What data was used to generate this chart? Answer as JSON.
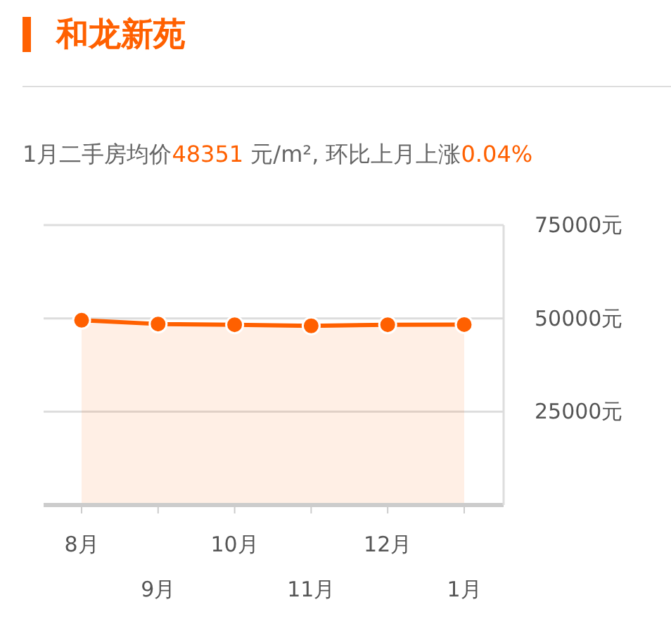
{
  "chart_data": {
    "type": "area",
    "title": "和龙新苑",
    "subtitle": "1月二手房均价48351 元/m², 环比上月上涨0.04%",
    "categories": [
      "8月",
      "9月",
      "10月",
      "11月",
      "12月",
      "1月"
    ],
    "series": [
      {
        "color": "#ff6000",
        "values": [
          49500,
          48500,
          48300,
          48000,
          48300,
          48351
        ]
      }
    ],
    "ylim": [
      0,
      75000
    ],
    "yticks": [
      {
        "value": 25000,
        "label": "25000元"
      },
      {
        "value": 50000,
        "label": "50000元"
      },
      {
        "value": 75000,
        "label": "75000元"
      }
    ],
    "grid": "y",
    "marker": "circle"
  }
}
